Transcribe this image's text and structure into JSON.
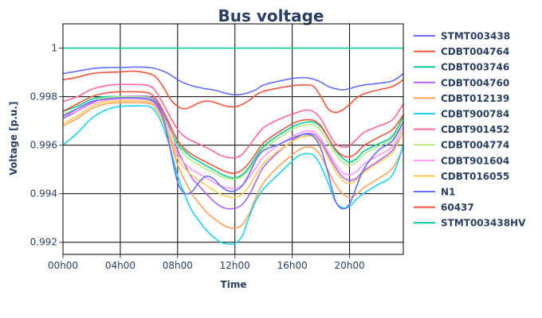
{
  "chart_data": {
    "type": "line",
    "title": "Bus voltage",
    "xlabel": "Time",
    "ylabel": "Voltage [p.u.]",
    "x": [
      "00h00",
      "01h00",
      "02h00",
      "03h00",
      "04h00",
      "05h00",
      "06h00",
      "06h30",
      "07h00",
      "07h30",
      "08h00",
      "08h30",
      "09h00",
      "09h30",
      "10h00",
      "10h30",
      "11h00",
      "11h30",
      "12h00",
      "12h30",
      "13h00",
      "13h30",
      "14h00",
      "15h00",
      "16h00",
      "16h30",
      "17h00",
      "17h30",
      "18h00",
      "18h30",
      "19h00",
      "19h30",
      "20h00",
      "20h30",
      "21h00",
      "22h00",
      "23h00",
      "23h45"
    ],
    "x_ticks": [
      "00h00",
      "04h00",
      "08h00",
      "12h00",
      "16h00",
      "20h00"
    ],
    "x_range": [
      "00h00",
      "23h45"
    ],
    "y_ticks": [
      0.992,
      0.994,
      0.996,
      0.998,
      1
    ],
    "y_tick_labels": [
      "0.992",
      "0.994",
      "0.996",
      "0.998",
      "1"
    ],
    "ylim": [
      0.9915,
      1.001
    ],
    "grid": true,
    "legend_position": "right",
    "series": [
      {
        "name": "STMT003438",
        "color": "#636efa",
        "values": [
          0.99895,
          0.99905,
          0.99915,
          0.9992,
          0.9992,
          0.99922,
          0.9992,
          0.99915,
          0.99905,
          0.9989,
          0.9987,
          0.99855,
          0.99845,
          0.99838,
          0.99832,
          0.99828,
          0.9982,
          0.99812,
          0.99808,
          0.9981,
          0.99818,
          0.9983,
          0.99848,
          0.99863,
          0.99875,
          0.99878,
          0.99878,
          0.99872,
          0.9986,
          0.99842,
          0.99833,
          0.99828,
          0.99833,
          0.99842,
          0.99848,
          0.99855,
          0.99865,
          0.99895
        ]
      },
      {
        "name": "CDBT004764",
        "color": "#ef553b",
        "values": [
          0.9987,
          0.9988,
          0.99895,
          0.999,
          0.99902,
          0.99905,
          0.99895,
          0.9988,
          0.9984,
          0.9979,
          0.9976,
          0.9975,
          0.9976,
          0.99775,
          0.99782,
          0.99778,
          0.99768,
          0.9976,
          0.99758,
          0.99768,
          0.99785,
          0.99808,
          0.99822,
          0.99835,
          0.99845,
          0.99848,
          0.99848,
          0.99842,
          0.998,
          0.9975,
          0.99735,
          0.99745,
          0.99768,
          0.99795,
          0.99812,
          0.99828,
          0.99842,
          0.9987
        ]
      },
      {
        "name": "CDBT003746",
        "color": "#00cc96",
        "values": [
          0.9974,
          0.9976,
          0.9979,
          0.998,
          0.998,
          0.998,
          0.9979,
          0.99765,
          0.99715,
          0.9966,
          0.99605,
          0.99575,
          0.9955,
          0.99533,
          0.99515,
          0.995,
          0.99482,
          0.9947,
          0.99465,
          0.99478,
          0.9951,
          0.99555,
          0.99595,
          0.9964,
          0.99675,
          0.99688,
          0.99695,
          0.99695,
          0.99675,
          0.9963,
          0.9958,
          0.99548,
          0.9953,
          0.99545,
          0.99575,
          0.99605,
          0.99638,
          0.9972
        ]
      },
      {
        "name": "CDBT004760",
        "color": "#ab63fa",
        "values": [
          0.9971,
          0.9974,
          0.99775,
          0.99795,
          0.998,
          0.99802,
          0.998,
          0.9978,
          0.9973,
          0.99665,
          0.9958,
          0.9952,
          0.99465,
          0.99432,
          0.994,
          0.9937,
          0.99348,
          0.99338,
          0.9934,
          0.99355,
          0.99395,
          0.99455,
          0.9951,
          0.9957,
          0.99618,
          0.99638,
          0.99648,
          0.99645,
          0.99615,
          0.99562,
          0.9951,
          0.9947,
          0.99455,
          0.99465,
          0.99495,
          0.99535,
          0.9958,
          0.99655
        ]
      },
      {
        "name": "CDBT012139",
        "color": "#ffa15a",
        "values": [
          0.9968,
          0.9971,
          0.9975,
          0.9977,
          0.99775,
          0.99775,
          0.99772,
          0.9975,
          0.99695,
          0.99615,
          0.9952,
          0.99455,
          0.994,
          0.9936,
          0.99325,
          0.993,
          0.99278,
          0.99262,
          0.99258,
          0.99272,
          0.99318,
          0.99388,
          0.99445,
          0.9951,
          0.9956,
          0.99582,
          0.99592,
          0.99588,
          0.99555,
          0.99495,
          0.9944,
          0.994,
          0.99385,
          0.99398,
          0.99425,
          0.99462,
          0.99505,
          0.9959
        ]
      },
      {
        "name": "CDBT900784",
        "color": "#19d3f3",
        "values": [
          0.996,
          0.9965,
          0.9971,
          0.99745,
          0.9976,
          0.99762,
          0.9976,
          0.99735,
          0.99675,
          0.99585,
          0.99475,
          0.99395,
          0.9933,
          0.99288,
          0.9925,
          0.99222,
          0.992,
          0.99193,
          0.99195,
          0.99225,
          0.99305,
          0.99375,
          0.9942,
          0.99478,
          0.99535,
          0.99558,
          0.99565,
          0.99558,
          0.99515,
          0.99445,
          0.9937,
          0.99342,
          0.99348,
          0.99378,
          0.99402,
          0.99438,
          0.99478,
          0.996
        ]
      },
      {
        "name": "CDBT901452",
        "color": "#ff6692",
        "values": [
          0.9978,
          0.998,
          0.9983,
          0.99845,
          0.9985,
          0.9985,
          0.99845,
          0.9982,
          0.9977,
          0.99715,
          0.99665,
          0.99635,
          0.99618,
          0.99605,
          0.9959,
          0.99575,
          0.99558,
          0.9955,
          0.99548,
          0.99562,
          0.99598,
          0.99638,
          0.99672,
          0.99705,
          0.99728,
          0.99738,
          0.99745,
          0.99738,
          0.99708,
          0.99655,
          0.99608,
          0.99592,
          0.99598,
          0.99625,
          0.99652,
          0.99678,
          0.99705,
          0.9977
        ]
      },
      {
        "name": "CDBT004774",
        "color": "#b6e880",
        "values": [
          0.9973,
          0.9975,
          0.9978,
          0.99795,
          0.998,
          0.998,
          0.99795,
          0.9977,
          0.9972,
          0.99655,
          0.99595,
          0.9956,
          0.99535,
          0.99518,
          0.99502,
          0.99488,
          0.99472,
          0.99462,
          0.9946,
          0.99472,
          0.995,
          0.99545,
          0.99585,
          0.99628,
          0.99665,
          0.99678,
          0.99685,
          0.99682,
          0.9966,
          0.99612,
          0.99565,
          0.9953,
          0.99518,
          0.99532,
          0.99562,
          0.99595,
          0.99628,
          0.9971
        ]
      },
      {
        "name": "CDBT901604",
        "color": "#ff97ff",
        "values": [
          0.9972,
          0.9974,
          0.9977,
          0.99785,
          0.9979,
          0.9979,
          0.99785,
          0.9976,
          0.99705,
          0.99635,
          0.99565,
          0.99525,
          0.995,
          0.99482,
          0.99465,
          0.99448,
          0.99432,
          0.99425,
          0.99422,
          0.99435,
          0.99468,
          0.9951,
          0.99552,
          0.99598,
          0.99635,
          0.9965,
          0.99658,
          0.99655,
          0.99628,
          0.99575,
          0.99525,
          0.99488,
          0.99478,
          0.99492,
          0.99522,
          0.99558,
          0.99595,
          0.99675
        ]
      },
      {
        "name": "CDBT016055",
        "color": "#fecb52",
        "values": [
          0.9969,
          0.9972,
          0.9976,
          0.99778,
          0.99782,
          0.99782,
          0.99778,
          0.99752,
          0.99698,
          0.99625,
          0.99548,
          0.99505,
          0.99475,
          0.99455,
          0.99435,
          0.99415,
          0.99398,
          0.99388,
          0.99385,
          0.99398,
          0.99432,
          0.99482,
          0.99525,
          0.99575,
          0.99615,
          0.99632,
          0.99638,
          0.99635,
          0.99605,
          0.9955,
          0.99495,
          0.99455,
          0.99442,
          0.99458,
          0.99488,
          0.99528,
          0.9957,
          0.99655
        ]
      },
      {
        "name": "N1",
        "color": "#636efa",
        "values": [
          0.9972,
          0.9975,
          0.9978,
          0.9979,
          0.99795,
          0.99795,
          0.9979,
          0.9977,
          0.9971,
          0.9958,
          0.99448,
          0.99402,
          0.99408,
          0.99448,
          0.99472,
          0.99462,
          0.99432,
          0.99412,
          0.99412,
          0.99432,
          0.99482,
          0.99542,
          0.99578,
          0.99602,
          0.99628,
          0.9964,
          0.99645,
          0.99635,
          0.99585,
          0.99485,
          0.99372,
          0.99338,
          0.99358,
          0.99432,
          0.99502,
          0.99578,
          0.99618,
          0.99695
        ]
      },
      {
        "name": "60437",
        "color": "#ef553b",
        "values": [
          0.9974,
          0.9977,
          0.998,
          0.99815,
          0.9982,
          0.9982,
          0.99815,
          0.9979,
          0.9974,
          0.9968,
          0.9962,
          0.99585,
          0.99562,
          0.99545,
          0.9953,
          0.99515,
          0.995,
          0.99488,
          0.99485,
          0.99498,
          0.99528,
          0.9957,
          0.9961,
          0.99652,
          0.99688,
          0.997,
          0.99705,
          0.99702,
          0.9968,
          0.99632,
          0.99585,
          0.99558,
          0.99552,
          0.99568,
          0.99598,
          0.99632,
          0.99665,
          0.99725
        ]
      },
      {
        "name": "STMT003438HV",
        "color": "#00cc96",
        "values": [
          1,
          1,
          1,
          1,
          1,
          1,
          1,
          1,
          1,
          1,
          1,
          1,
          1,
          1,
          1,
          1,
          1,
          1,
          1,
          1,
          1,
          1,
          1,
          1,
          1,
          1,
          1,
          1,
          1,
          1,
          1,
          1,
          1,
          1,
          1,
          1,
          1,
          1
        ]
      }
    ]
  }
}
